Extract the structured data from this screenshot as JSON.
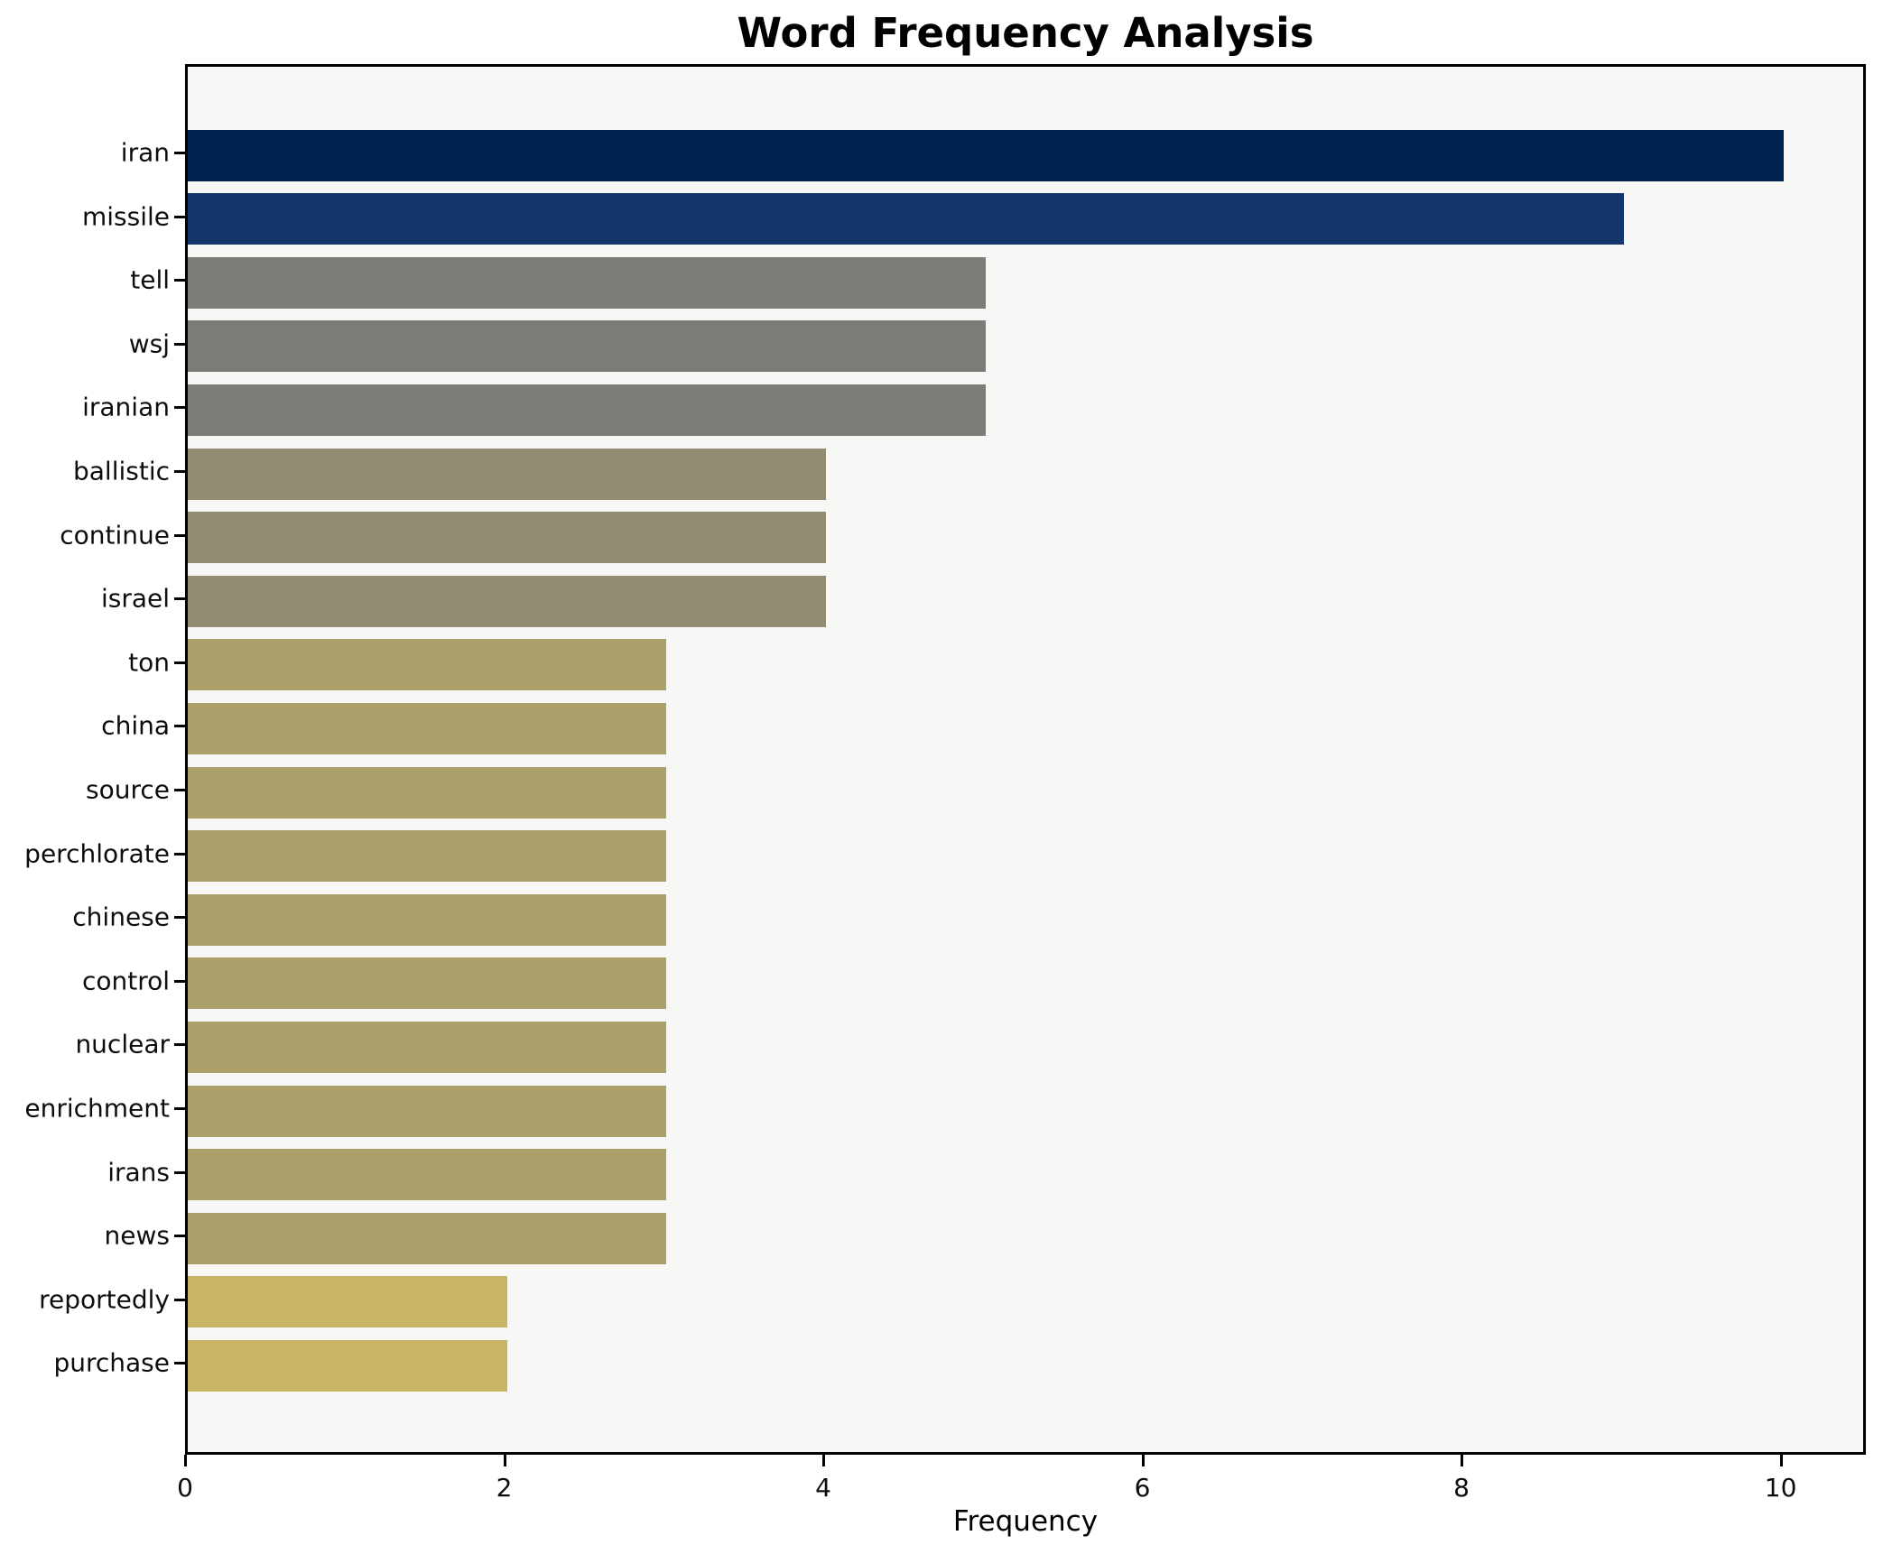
{
  "chart_data": {
    "type": "bar",
    "orientation": "horizontal",
    "title": "Word Frequency Analysis",
    "xlabel": "Frequency",
    "ylabel": "",
    "categories": [
      "iran",
      "missile",
      "tell",
      "wsj",
      "iranian",
      "ballistic",
      "continue",
      "israel",
      "ton",
      "china",
      "source",
      "perchlorate",
      "chinese",
      "control",
      "nuclear",
      "enrichment",
      "irans",
      "news",
      "reportedly",
      "purchase"
    ],
    "values": [
      10,
      9,
      5,
      5,
      5,
      4,
      4,
      4,
      3,
      3,
      3,
      3,
      3,
      3,
      3,
      3,
      3,
      3,
      2,
      2
    ],
    "bar_colors": [
      "#00224e",
      "#15356d",
      "#7c7b77",
      "#7c7b77",
      "#7c7b77",
      "#928c72",
      "#928c72",
      "#928c72",
      "#aca06a",
      "#aca06a",
      "#aca06a",
      "#aca06a",
      "#aca06a",
      "#aca06a",
      "#aca06a",
      "#aca06a",
      "#aca06a",
      "#aca06a",
      "#c7b464",
      "#c7b464"
    ],
    "xticks": [
      0,
      2,
      4,
      6,
      8,
      10
    ],
    "xlim": [
      0,
      10.5
    ],
    "grid": false,
    "legend_position": "none",
    "plot_background": "#f7f7f6",
    "figure_background": "#ffffff",
    "spine_color": "#000000"
  }
}
